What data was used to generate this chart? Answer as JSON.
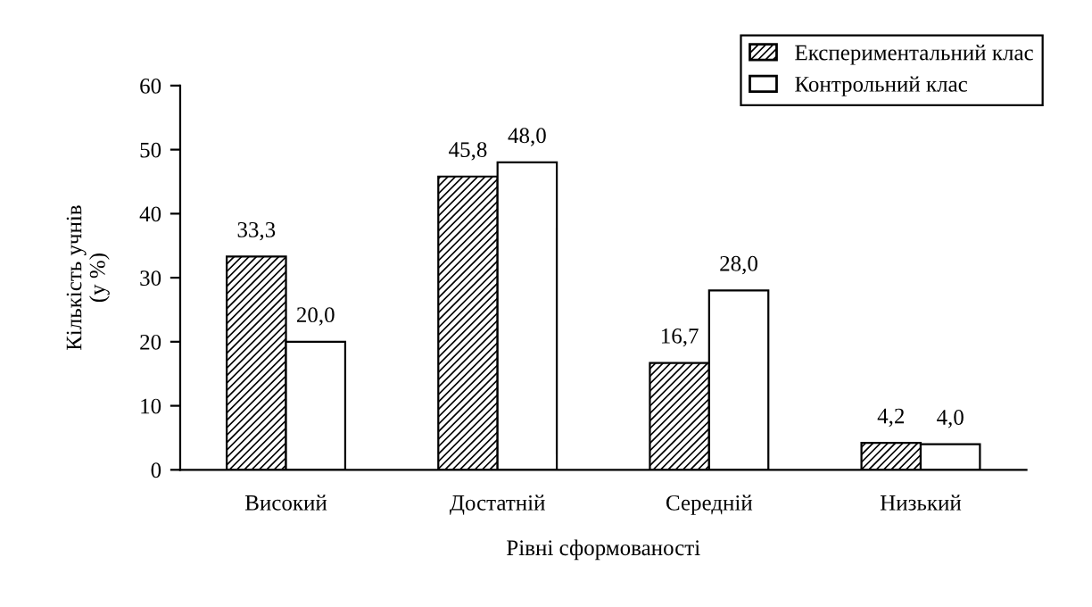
{
  "chart_data": {
    "type": "bar",
    "xlabel": "Рівні сформованості",
    "ylabel": "Кількість учнів\n(у %)",
    "categories": [
      "Високий",
      "Достатній",
      "Середній",
      "Низький"
    ],
    "series": [
      {
        "name": "Експериментальний клас",
        "color": "#000000",
        "values": [
          33.3,
          45.8,
          16.7,
          4.2
        ],
        "value_labels": [
          "33,3",
          "45,8",
          "16,7",
          "4,2"
        ]
      },
      {
        "name": "Контрольний клас",
        "color": "#ffffff",
        "values": [
          20.0,
          48.0,
          28.0,
          4.0
        ],
        "value_labels": [
          "20,0",
          "48,0",
          "28,0",
          "4,0"
        ]
      }
    ],
    "ylim": [
      0,
      60
    ],
    "yticks": [
      0,
      10,
      20,
      30,
      40,
      50,
      60
    ],
    "grid": false,
    "legend": "top right"
  }
}
